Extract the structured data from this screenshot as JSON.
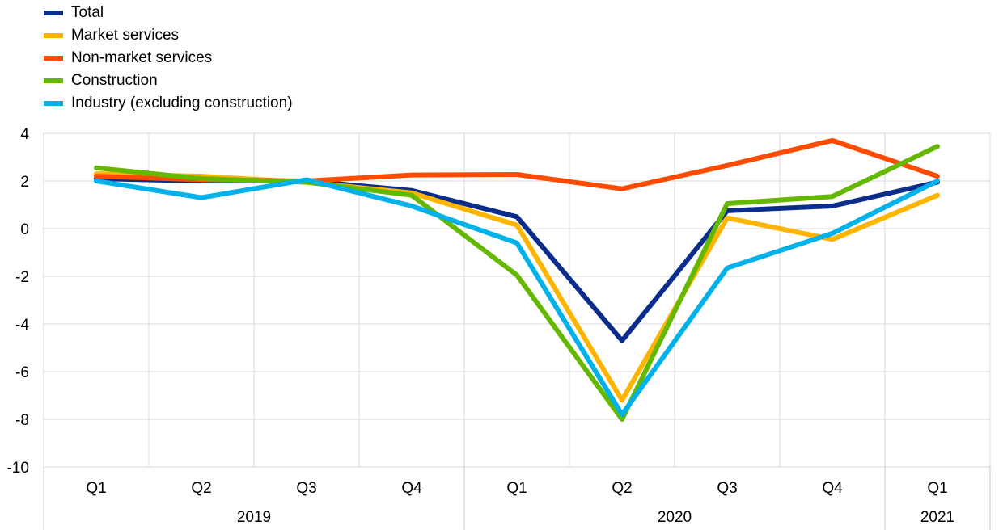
{
  "chart_data": {
    "type": "line",
    "categories": [
      "Q1",
      "Q2",
      "Q3",
      "Q4",
      "Q1",
      "Q2",
      "Q3",
      "Q4",
      "Q1"
    ],
    "years": [
      {
        "label": "2019",
        "quarters": 4
      },
      {
        "label": "2020",
        "quarters": 4
      },
      {
        "label": "2021",
        "quarters": 1
      }
    ],
    "ylim": [
      -10,
      4
    ],
    "yticks": [
      4,
      2,
      0,
      -2,
      -4,
      -6,
      -8,
      -10
    ],
    "grid": true,
    "legend_position": "top-left",
    "series": [
      {
        "name": "Total",
        "color": "#0a2d8c",
        "values": [
          2.1,
          2.0,
          2.0,
          1.6,
          0.5,
          -4.7,
          0.75,
          0.95,
          1.95
        ]
      },
      {
        "name": "Market services",
        "color": "#ffb400",
        "values": [
          2.3,
          2.2,
          1.95,
          1.5,
          0.15,
          -7.2,
          0.45,
          -0.45,
          1.4
        ]
      },
      {
        "name": "Non-market services",
        "color": "#ff4b00",
        "values": [
          2.2,
          2.05,
          2.0,
          2.25,
          2.27,
          1.67,
          2.65,
          3.7,
          2.2
        ]
      },
      {
        "name": "Construction",
        "color": "#65b800",
        "values": [
          2.55,
          2.1,
          1.95,
          1.4,
          -1.95,
          -8.0,
          1.05,
          1.35,
          3.45
        ]
      },
      {
        "name": "Industry (excluding construction)",
        "color": "#00b1ea",
        "values": [
          2.0,
          1.3,
          2.05,
          0.95,
          -0.6,
          -7.8,
          -1.65,
          -0.2,
          2.0
        ]
      }
    ]
  }
}
